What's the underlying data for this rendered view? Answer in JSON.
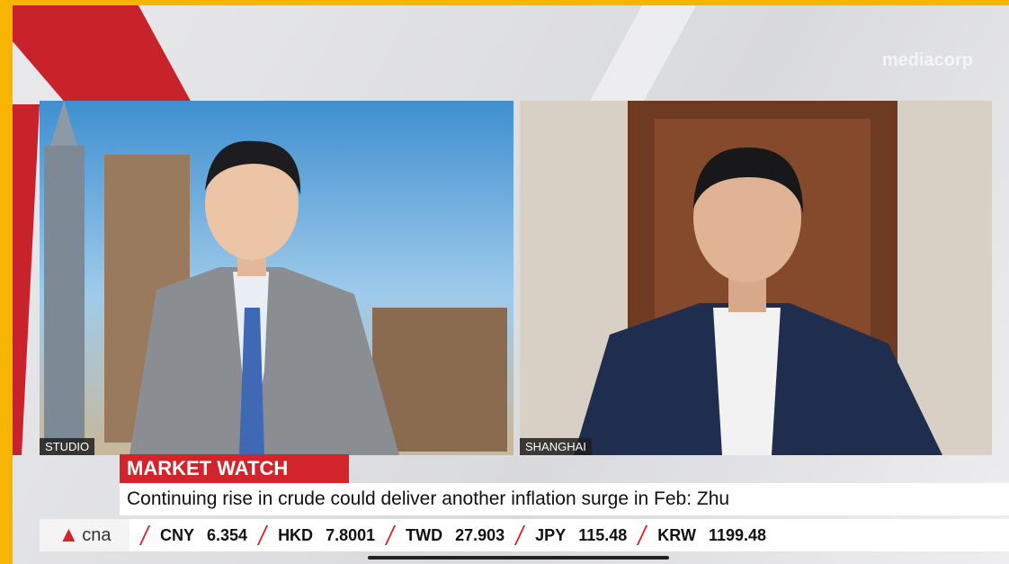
{
  "watermark": "mediacorp",
  "panels": [
    {
      "label": "STUDIO"
    },
    {
      "label": "SHANGHAI"
    }
  ],
  "lower_third": {
    "tag": "MARKET WATCH",
    "headline": "Continuing rise in crude could deliver another inflation surge in Feb: Zhu"
  },
  "logo": "cna",
  "ticker": [
    {
      "currency": "CNY",
      "rate": 6.354
    },
    {
      "currency": "HKD",
      "rate": 7.8001
    },
    {
      "currency": "TWD",
      "rate": 27.903
    },
    {
      "currency": "JPY",
      "rate": 115.48
    },
    {
      "currency": "KRW",
      "rate": 1199.48
    }
  ]
}
